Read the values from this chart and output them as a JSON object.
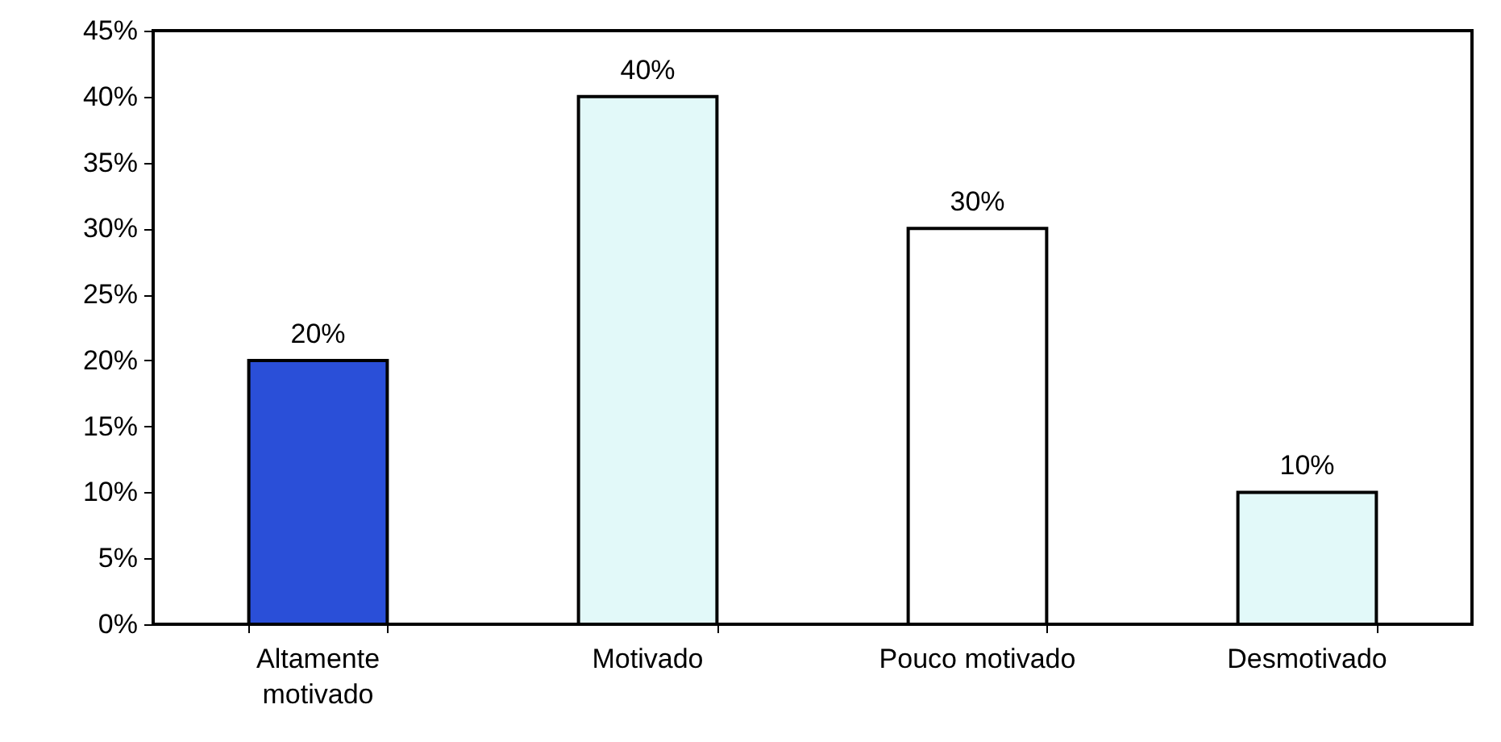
{
  "chart_data": {
    "type": "bar",
    "categories": [
      "Altamente motivado",
      "Motivado",
      "Pouco motivado",
      "Desmotivado"
    ],
    "values": [
      20,
      40,
      30,
      10
    ],
    "colors": [
      "#2a4fd8",
      "#e2f9f9",
      "#ffffff",
      "#e2f9f9"
    ],
    "value_labels": [
      "20%",
      "40%",
      "30%",
      "10%"
    ],
    "ylim": [
      0,
      45
    ],
    "yticks": [
      {
        "value": 0,
        "label": "0%"
      },
      {
        "value": 5,
        "label": "5%"
      },
      {
        "value": 10,
        "label": "10%"
      },
      {
        "value": 15,
        "label": "15%"
      },
      {
        "value": 20,
        "label": "20%"
      },
      {
        "value": 25,
        "label": "25%"
      },
      {
        "value": 30,
        "label": "30%"
      },
      {
        "value": 35,
        "label": "35%"
      },
      {
        "value": 40,
        "label": "40%"
      },
      {
        "value": 45,
        "label": "45%"
      }
    ],
    "grid": false
  }
}
